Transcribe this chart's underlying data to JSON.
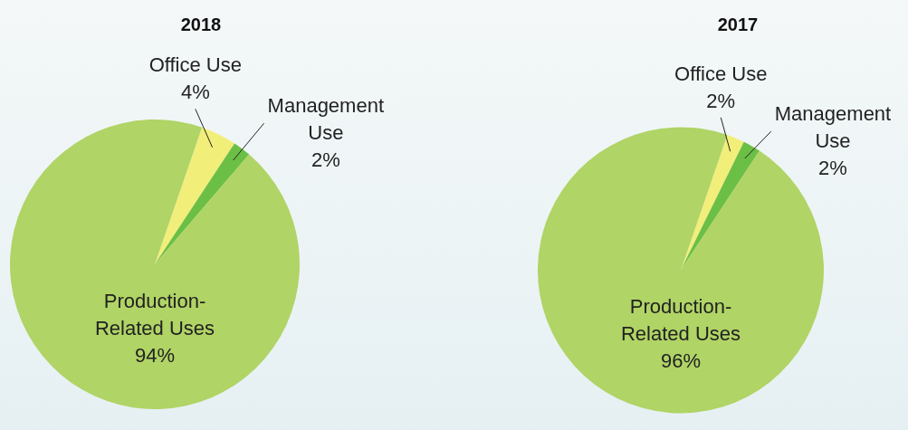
{
  "chart_data": [
    {
      "type": "pie",
      "title": "2018",
      "categories": [
        "Office Use",
        "Management Use",
        "Production-Related Uses"
      ],
      "values": [
        4,
        2,
        94
      ],
      "colors": [
        "#f2ee7a",
        "#6cbf45",
        "#b0d465"
      ],
      "value_labels": [
        "4%",
        "2%",
        "94%"
      ]
    },
    {
      "type": "pie",
      "title": "2017",
      "categories": [
        "Office Use",
        "Management Use",
        "Production-Related Uses"
      ],
      "values": [
        2,
        2,
        96
      ],
      "colors": [
        "#f2ee7a",
        "#6cbf45",
        "#b0d465"
      ],
      "value_labels": [
        "2%",
        "2%",
        "96%"
      ]
    }
  ]
}
